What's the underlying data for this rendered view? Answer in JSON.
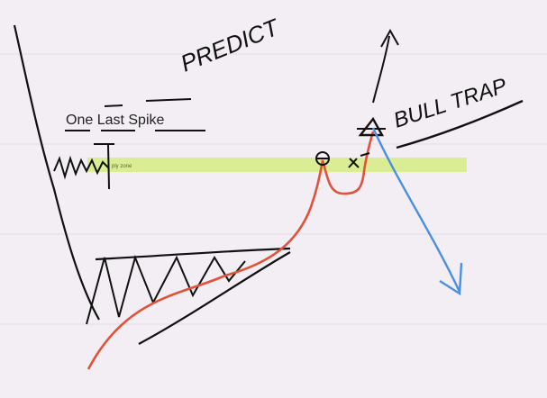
{
  "annotations": {
    "prediction": "PREDICT",
    "one_last_spike": "One Last Spike",
    "supply_zone": "ply zone",
    "bull_trap": "BULL TRAP"
  },
  "colors": {
    "background": "#f3eef3",
    "supply_zone": "#d8ec8a",
    "price_path": "#e0523a",
    "projection": "#4a8fe0",
    "ink": "#111111"
  }
}
